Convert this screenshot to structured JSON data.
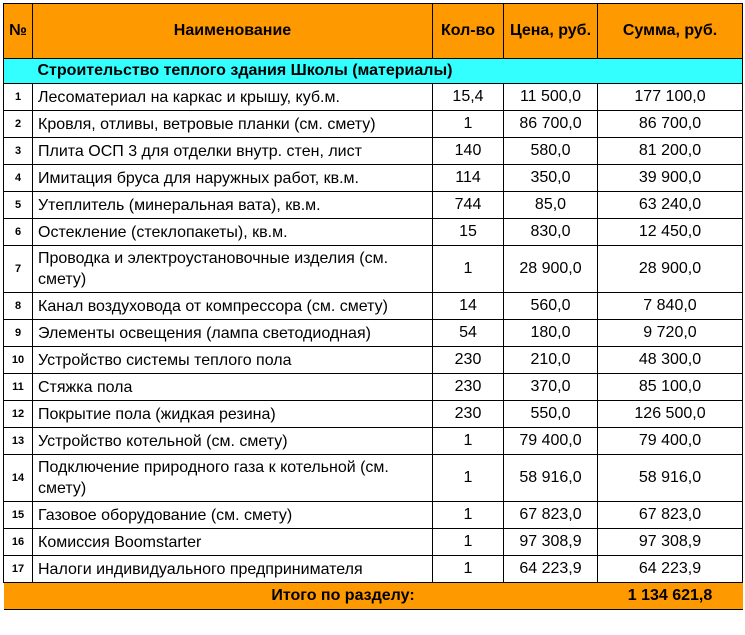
{
  "header": {
    "num": "№",
    "name": "Наименование",
    "qty": "Кол-во",
    "price": "Цена, руб.",
    "sum": "Сумма, руб."
  },
  "section_title": "Строительство теплого здания Школы (материалы)",
  "rows": [
    {
      "n": "1",
      "name": "Лесоматериал на каркас и крышу, куб.м.",
      "qty": "15,4",
      "price": "11 500,0",
      "sum": "177 100,0"
    },
    {
      "n": "2",
      "name": "Кровля, отливы, ветровые планки (см. смету)",
      "qty": "1",
      "price": "86 700,0",
      "sum": "86 700,0"
    },
    {
      "n": "3",
      "name": "Плита ОСП 3 для отделки внутр. стен, лист",
      "qty": "140",
      "price": "580,0",
      "sum": "81 200,0"
    },
    {
      "n": "4",
      "name": "Имитация бруса для наружных работ, кв.м.",
      "qty": "114",
      "price": "350,0",
      "sum": "39 900,0"
    },
    {
      "n": "5",
      "name": "Утеплитель (минеральная вата), кв.м.",
      "qty": "744",
      "price": "85,0",
      "sum": "63 240,0"
    },
    {
      "n": "6",
      "name": "Остекление (стеклопакеты), кв.м.",
      "qty": "15",
      "price": "830,0",
      "sum": "12 450,0"
    },
    {
      "n": "7",
      "name": "Проводка и электроустановочные изделия (см. смету)",
      "qty": "1",
      "price": "28 900,0",
      "sum": "28 900,0"
    },
    {
      "n": "8",
      "name": "Канал воздуховода от компрессора (см. смету)",
      "qty": "14",
      "price": "560,0",
      "sum": "7 840,0"
    },
    {
      "n": "9",
      "name": "Элементы освещения (лампа светодиодная)",
      "qty": "54",
      "price": "180,0",
      "sum": "9 720,0"
    },
    {
      "n": "10",
      "name": "Устройство системы теплого пола",
      "qty": "230",
      "price": "210,0",
      "sum": "48 300,0"
    },
    {
      "n": "11",
      "name": "Стяжка пола",
      "qty": "230",
      "price": "370,0",
      "sum": "85 100,0"
    },
    {
      "n": "12",
      "name": "Покрытие пола (жидкая резина)",
      "qty": "230",
      "price": "550,0",
      "sum": "126 500,0"
    },
    {
      "n": "13",
      "name": "Устройство котельной (см. смету)",
      "qty": "1",
      "price": "79 400,0",
      "sum": "79 400,0"
    },
    {
      "n": "14",
      "name": "Подключение природного газа к котельной (см. смету)",
      "qty": "1",
      "price": "58 916,0",
      "sum": "58 916,0"
    },
    {
      "n": "15",
      "name": "Газовое оборудование (см. смету)",
      "qty": "1",
      "price": "67 823,0",
      "sum": "67 823,0"
    },
    {
      "n": "16",
      "name": "Комиссия Boomstarter",
      "qty": "1",
      "price": "97 308,9",
      "sum": "97 308,9"
    },
    {
      "n": "17",
      "name": "Налоги индивидуального предпринимателя",
      "qty": "1",
      "price": "64 223,9",
      "sum": "64 223,9"
    }
  ],
  "footer": {
    "label": "Итого по разделу:",
    "total": "1 134 621,8"
  },
  "colors": {
    "header_bg": "#FF9900",
    "section_bg": "#33FFFF"
  }
}
